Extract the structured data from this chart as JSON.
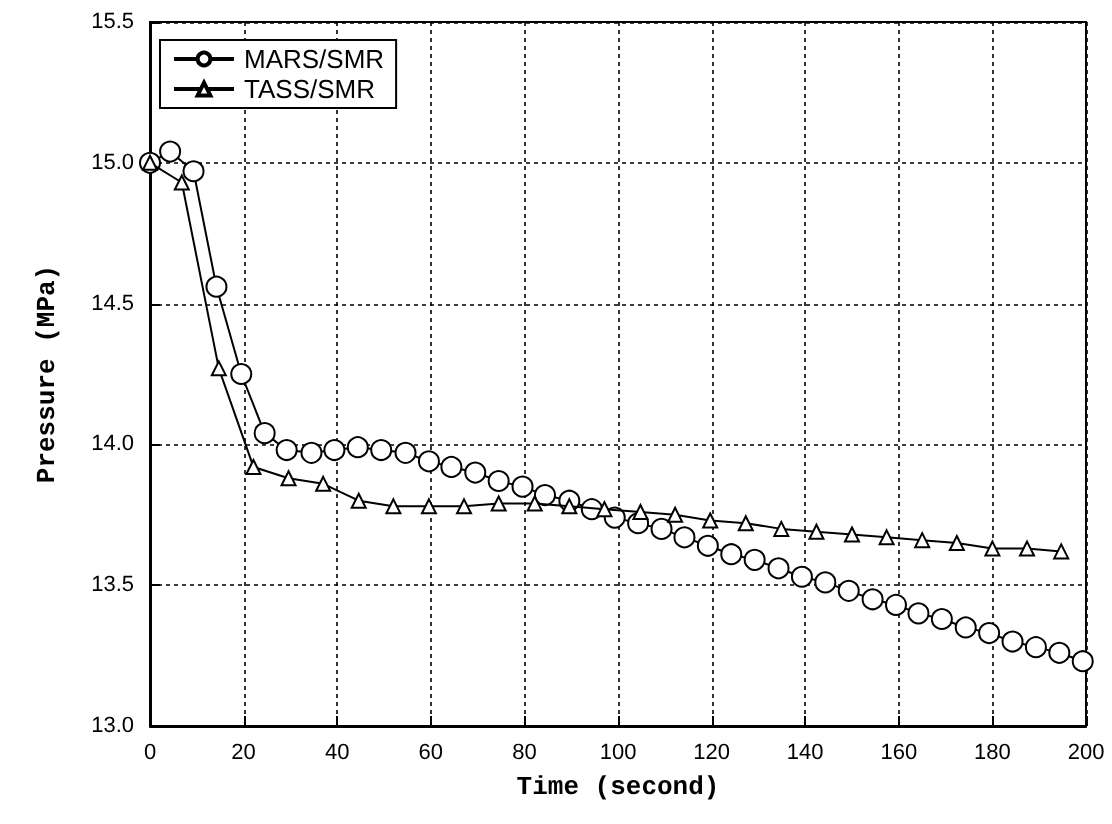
{
  "chart_data": {
    "type": "line",
    "xlabel": "Time (second)",
    "ylabel": "Pressure (MPa)",
    "xlim": [
      0,
      200
    ],
    "xticks": [
      0,
      20,
      40,
      60,
      80,
      100,
      120,
      140,
      160,
      180,
      200
    ],
    "ylim": [
      13.0,
      15.5
    ],
    "yticks": [
      {
        "value": 13,
        "label": "13.0"
      },
      13.5,
      {
        "value": 14,
        "label": "14.0"
      },
      14.5,
      {
        "value": 15,
        "label": "15.0"
      },
      15.5
    ],
    "grid": true,
    "legend": "top left",
    "line_style": "solid",
    "series": [
      {
        "name": "MARS/SMR",
        "color": "#000000",
        "marker": "circle",
        "x": [
          0,
          4.3,
          9.3,
          14.2,
          19.5,
          24.5,
          29.2,
          34.5,
          39.4,
          44.4,
          49.4,
          54.6,
          59.6,
          64.4,
          69.5,
          74.5,
          79.6,
          84.4,
          89.6,
          94.4,
          99.3,
          104.3,
          109.3,
          114.2,
          119.2,
          124.2,
          129.2,
          134.3,
          139.3,
          144.3,
          149.3,
          154.4,
          159.4,
          164.2,
          169.2,
          174.3,
          179.3,
          184.3,
          189.3,
          194.3,
          199.3
        ],
        "values": [
          15.0,
          15.04,
          14.97,
          14.56,
          14.25,
          14.04,
          13.98,
          13.97,
          13.98,
          13.99,
          13.98,
          13.97,
          13.94,
          13.92,
          13.9,
          13.87,
          13.85,
          13.82,
          13.8,
          13.77,
          13.74,
          13.72,
          13.7,
          13.67,
          13.64,
          13.61,
          13.59,
          13.56,
          13.53,
          13.51,
          13.48,
          13.45,
          13.43,
          13.4,
          13.38,
          13.35,
          13.33,
          13.3,
          13.28,
          13.26,
          13.23
        ]
      },
      {
        "name": "TASS/SMR",
        "color": "#000000",
        "marker": "triangle",
        "x": [
          0,
          6.8,
          14.7,
          22.1,
          29.6,
          37,
          44.6,
          52,
          59.6,
          67.1,
          74.5,
          82.2,
          89.6,
          97.1,
          104.8,
          112.2,
          119.7,
          127.3,
          134.9,
          142.4,
          150,
          157.4,
          165,
          172.4,
          180,
          187.4,
          194.7
        ],
        "values": [
          15.0,
          14.93,
          14.27,
          13.92,
          13.88,
          13.86,
          13.8,
          13.78,
          13.78,
          13.78,
          13.79,
          13.79,
          13.78,
          13.77,
          13.76,
          13.75,
          13.73,
          13.72,
          13.7,
          13.69,
          13.68,
          13.67,
          13.66,
          13.65,
          13.63,
          13.63,
          13.62
        ]
      }
    ]
  }
}
